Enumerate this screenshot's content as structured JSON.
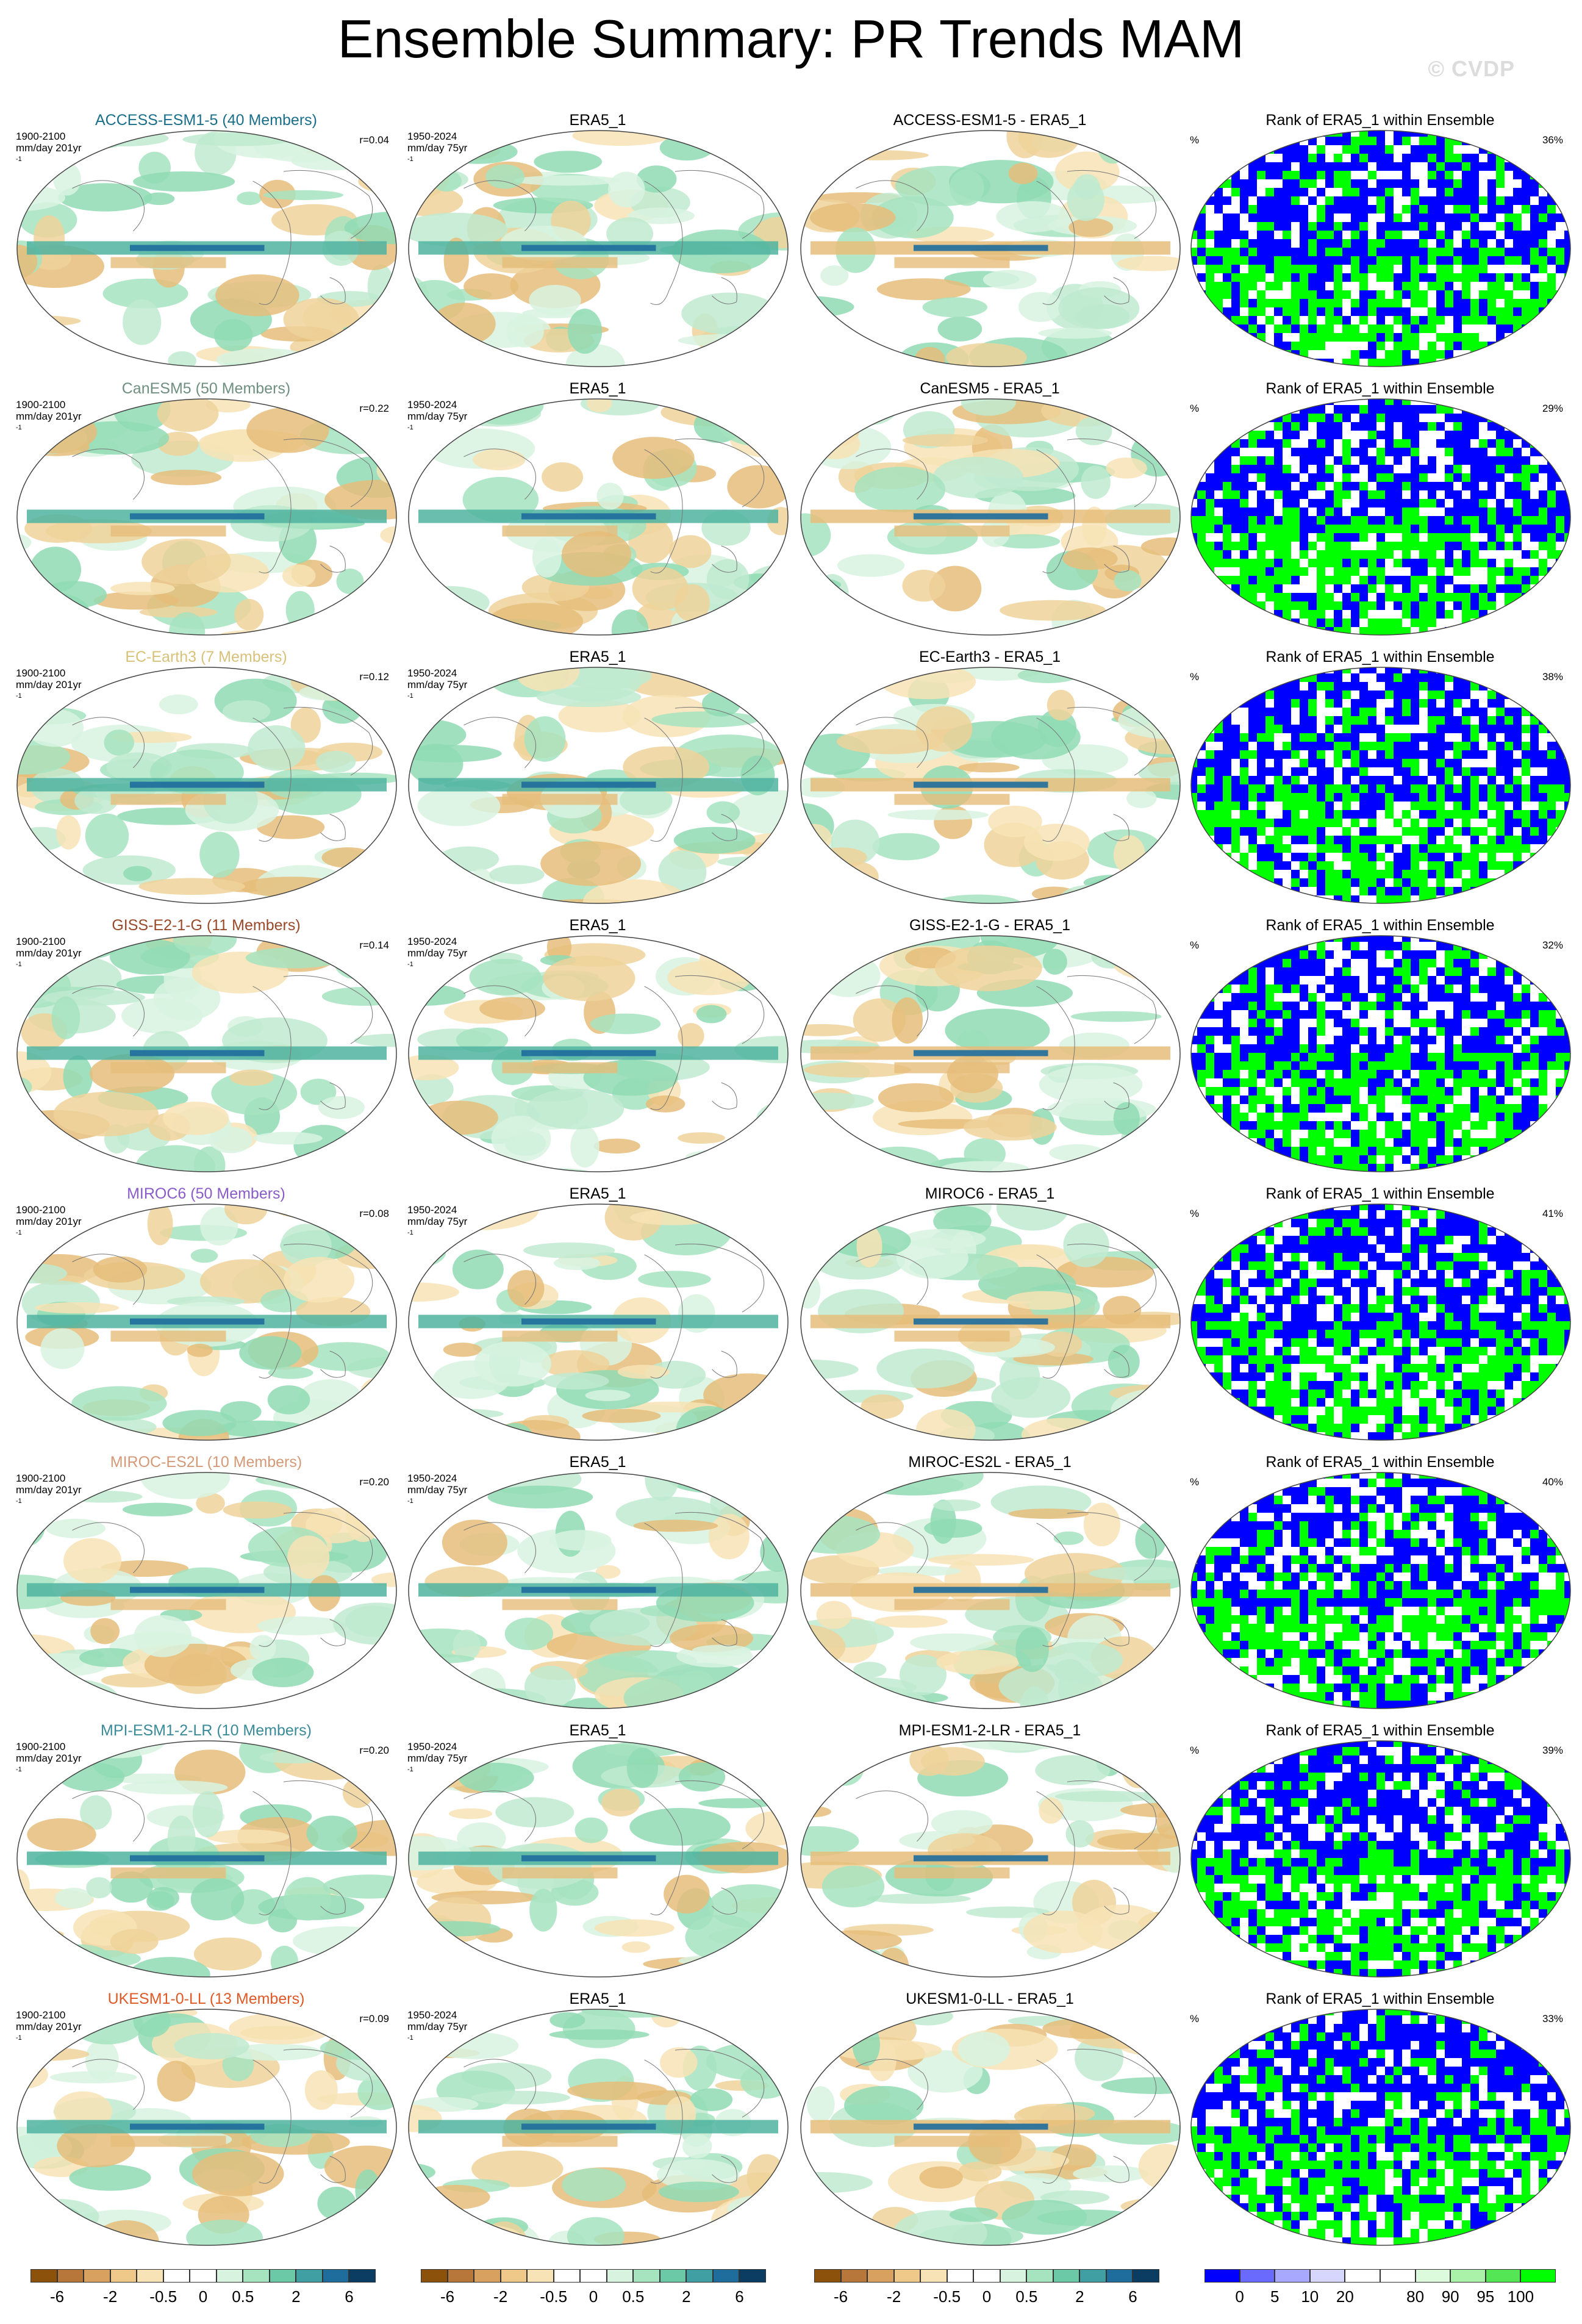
{
  "page": {
    "title": "Ensemble Summary: PR Trends MAM",
    "watermark": "© CVDP"
  },
  "colors": {
    "trend_scale": [
      "#8c510a",
      "#b8773a",
      "#d9a15f",
      "#efc98a",
      "#f7e3b5",
      "#ffffff",
      "#ffffff",
      "#d8f3e0",
      "#a6e3bf",
      "#6bc9a8",
      "#3f9fa3",
      "#1f6d9c",
      "#0b3d63"
    ],
    "rank_scale": [
      "#0000ff",
      "#6a6aff",
      "#a8a8ff",
      "#d6d6ff",
      "#ffffff",
      "#ffffff",
      "#dcfadc",
      "#aaf2aa",
      "#55e655",
      "#00ff00"
    ],
    "model_title_colors": [
      "#1b6f8a",
      "#6f8f80",
      "#d8c27a",
      "#9a4a2a",
      "#8a5cc8",
      "#d49a78",
      "#3a8a9a",
      "#e05a28"
    ]
  },
  "rows": [
    {
      "model": "ACCESS-ESM1-5 (40 Members)",
      "period": "1900-2100",
      "units": "mm/day 201yr",
      "r": "r=0.04",
      "obs_title": "ERA5_1",
      "obs_period": "1950-2024",
      "obs_units": "mm/day 75yr",
      "diff_title": "ACCESS-ESM1-5 - ERA5_1",
      "rank_title": "Rank of ERA5_1 within Ensemble",
      "rank_symbol": "%",
      "rank_pct": "36%"
    },
    {
      "model": "CanESM5 (50 Members)",
      "period": "1900-2100",
      "units": "mm/day 201yr",
      "r": "r=0.22",
      "obs_title": "ERA5_1",
      "obs_period": "1950-2024",
      "obs_units": "mm/day 75yr",
      "diff_title": "CanESM5 - ERA5_1",
      "rank_title": "Rank of ERA5_1 within Ensemble",
      "rank_symbol": "%",
      "rank_pct": "29%"
    },
    {
      "model": "EC-Earth3 (7 Members)",
      "period": "1900-2100",
      "units": "mm/day 201yr",
      "r": "r=0.12",
      "obs_title": "ERA5_1",
      "obs_period": "1950-2024",
      "obs_units": "mm/day 75yr",
      "diff_title": "EC-Earth3 - ERA5_1",
      "rank_title": "Rank of ERA5_1 within Ensemble",
      "rank_symbol": "%",
      "rank_pct": "38%"
    },
    {
      "model": "GISS-E2-1-G (11 Members)",
      "period": "1900-2100",
      "units": "mm/day 201yr",
      "r": "r=0.14",
      "obs_title": "ERA5_1",
      "obs_period": "1950-2024",
      "obs_units": "mm/day 75yr",
      "diff_title": "GISS-E2-1-G - ERA5_1",
      "rank_title": "Rank of ERA5_1 within Ensemble",
      "rank_symbol": "%",
      "rank_pct": "32%"
    },
    {
      "model": "MIROC6 (50 Members)",
      "period": "1900-2100",
      "units": "mm/day 201yr",
      "r": "r=0.08",
      "obs_title": "ERA5_1",
      "obs_period": "1950-2024",
      "obs_units": "mm/day 75yr",
      "diff_title": "MIROC6 - ERA5_1",
      "rank_title": "Rank of ERA5_1 within Ensemble",
      "rank_symbol": "%",
      "rank_pct": "41%"
    },
    {
      "model": "MIROC-ES2L (10 Members)",
      "period": "1900-2100",
      "units": "mm/day 201yr",
      "r": "r=0.20",
      "obs_title": "ERA5_1",
      "obs_period": "1950-2024",
      "obs_units": "mm/day 75yr",
      "diff_title": "MIROC-ES2L - ERA5_1",
      "rank_title": "Rank of ERA5_1 within Ensemble",
      "rank_symbol": "%",
      "rank_pct": "40%"
    },
    {
      "model": "MPI-ESM1-2-LR (10 Members)",
      "period": "1900-2100",
      "units": "mm/day 201yr",
      "r": "r=0.20",
      "obs_title": "ERA5_1",
      "obs_period": "1950-2024",
      "obs_units": "mm/day 75yr",
      "diff_title": "MPI-ESM1-2-LR - ERA5_1",
      "rank_title": "Rank of ERA5_1 within Ensemble",
      "rank_symbol": "%",
      "rank_pct": "39%"
    },
    {
      "model": "UKESM1-0-LL (13 Members)",
      "period": "1900-2100",
      "units": "mm/day 201yr",
      "r": "r=0.09",
      "obs_title": "ERA5_1",
      "obs_period": "1950-2024",
      "obs_units": "mm/day 75yr",
      "diff_title": "UKESM1-0-LL - ERA5_1",
      "rank_title": "Rank of ERA5_1 within Ensemble",
      "rank_symbol": "%",
      "rank_pct": "33%"
    }
  ],
  "colorbars": {
    "trend_labels": [
      "-6",
      "-2",
      "-0.5",
      "0",
      "0.5",
      "2",
      "6"
    ],
    "rank_labels": [
      "0",
      "5",
      "10",
      "20",
      "80",
      "90",
      "95",
      "100"
    ]
  },
  "chart_data": {
    "type": "heatmap",
    "title": "Ensemble Summary: PR Trends MAM",
    "projection": "global map (Robinson-like ellipse)",
    "variable": "PR trends, MAM",
    "panel_columns": [
      "model ensemble-mean trend",
      "ERA5_1 trend",
      "model minus ERA5_1",
      "rank of ERA5_1 within ensemble"
    ],
    "models": [
      "ACCESS-ESM1-5",
      "CanESM5",
      "EC-Earth3",
      "GISS-E2-1-G",
      "MIROC6",
      "MIROC-ES2L",
      "MPI-ESM1-2-LR",
      "UKESM1-0-LL"
    ],
    "members": [
      40,
      50,
      7,
      11,
      50,
      10,
      10,
      13
    ],
    "pattern_correlation_r": [
      0.04,
      0.22,
      0.12,
      0.14,
      0.08,
      0.2,
      0.2,
      0.09
    ],
    "rank_area_percent": [
      36,
      29,
      38,
      32,
      41,
      40,
      39,
      33
    ],
    "trend_colorbar_levels": [
      -6,
      -2,
      -0.5,
      0,
      0.5,
      2,
      6
    ],
    "rank_colorbar_levels": [
      0,
      5,
      10,
      20,
      80,
      90,
      95,
      100
    ]
  }
}
